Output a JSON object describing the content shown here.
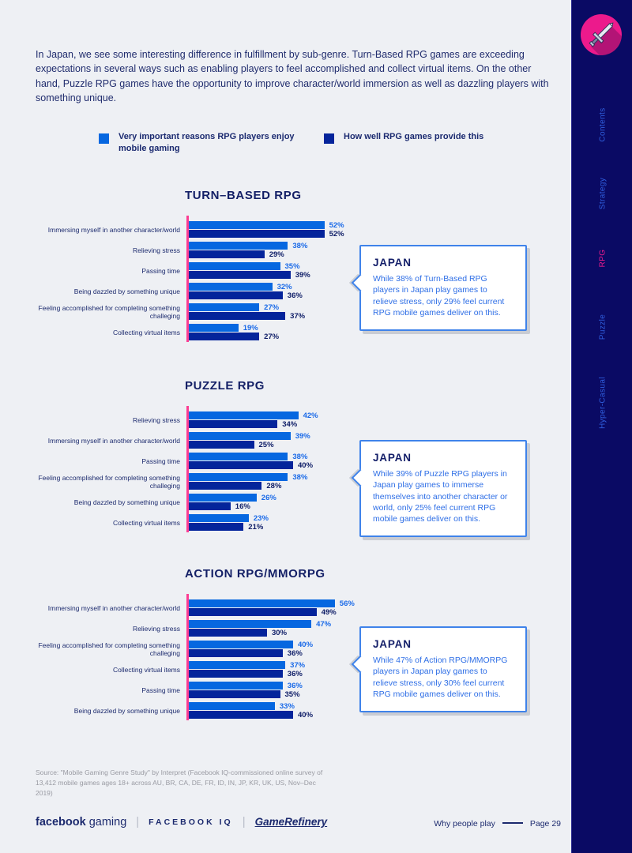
{
  "colors": {
    "bar_important": "#0667e0",
    "bar_provide": "#04249b",
    "axis_pink": "#fb3e93",
    "sidebar_bg": "#0a0a64",
    "sidebar_active": "#ea1b8c",
    "callout_border": "#3f83ea",
    "icon_circle": "#ec1a8c",
    "navy_text": "#131f66"
  },
  "intro": "In Japan, we see some interesting difference in fulfillment by sub-genre. Turn-Based RPG games are exceeding expectations in several ways such as enabling players to feel accomplished and collect virtual items. On the other hand, Puzzle RPG games have the opportunity to improve character/world immersion as well as dazzling players with something unique.",
  "legend": [
    {
      "label": "Very important reasons RPG players enjoy mobile gaming",
      "color": "#0667e0"
    },
    {
      "label": "How well RPG games provide this",
      "color": "#04249b"
    }
  ],
  "chart_data": [
    {
      "type": "bar",
      "orientation": "horizontal",
      "title": "TURN–BASED RPG",
      "value_suffix": "%",
      "xlim": [
        0,
        60
      ],
      "categories": [
        "Immersing myself in another character/world",
        "Relieving stress",
        "Passing time",
        "Being dazzled by something unique",
        "Feeling accomplished for completing something challeging",
        "Collecting virtual items"
      ],
      "series": [
        {
          "name": "Very important reasons RPG players enjoy mobile gaming",
          "values": [
            52,
            38,
            35,
            32,
            27,
            19
          ]
        },
        {
          "name": "How well RPG games provide this",
          "values": [
            52,
            29,
            39,
            36,
            37,
            27
          ]
        }
      ]
    },
    {
      "type": "bar",
      "orientation": "horizontal",
      "title": "PUZZLE RPG",
      "value_suffix": "%",
      "xlim": [
        0,
        60
      ],
      "categories": [
        "Relieving stress",
        "Immersing myself in another character/world",
        "Passing time",
        "Feeling accomplished for completing something challeging",
        "Being dazzled by something unique",
        "Collecting virtual items"
      ],
      "series": [
        {
          "name": "Very important reasons RPG players enjoy mobile gaming",
          "values": [
            42,
            39,
            38,
            38,
            26,
            23
          ]
        },
        {
          "name": "How well RPG games provide this",
          "values": [
            34,
            25,
            40,
            28,
            16,
            21
          ]
        }
      ]
    },
    {
      "type": "bar",
      "orientation": "horizontal",
      "title": "ACTION RPG/MMORPG",
      "value_suffix": "%",
      "xlim": [
        0,
        60
      ],
      "categories": [
        "Immersing myself in another character/world",
        "Relieving stress",
        "Feeling accomplished for completing something challeging",
        "Collecting virtual items",
        "Passing time",
        "Being dazzled by something unique"
      ],
      "series": [
        {
          "name": "Very important reasons RPG players enjoy mobile gaming",
          "values": [
            56,
            47,
            40,
            37,
            36,
            33
          ]
        },
        {
          "name": "How well RPG games provide this",
          "values": [
            49,
            30,
            36,
            36,
            35,
            40
          ]
        }
      ]
    }
  ],
  "callouts": [
    {
      "title": "JAPAN",
      "body": "While 38% of Turn-Based RPG players in Japan play games to relieve stress, only 29% feel current RPG mobile games deliver on this."
    },
    {
      "title": "JAPAN",
      "body": "While 39% of Puzzle RPG players in Japan play games to immerse themselves into another character or world, only 25% feel current RPG mobile games deliver on this."
    },
    {
      "title": "JAPAN",
      "body": "While 47% of Action RPG/MMORPG players in Japan play games to relieve stress, only 30% feel current RPG mobile games deliver on this."
    }
  ],
  "sidebar": {
    "icon": "sword-icon",
    "items": [
      {
        "label": "Contents",
        "active": false
      },
      {
        "label": "Strategy",
        "active": false
      },
      {
        "label": "RPG",
        "active": true
      },
      {
        "label": "Puzzle",
        "active": false
      },
      {
        "label": "Hyper-Casual",
        "active": false
      }
    ]
  },
  "footer": {
    "source": "Source: \"Mobile Gaming Genre Study\" by Interpret (Facebook IQ-commissioned online survey of 13,412 mobile games ages 18+ across AU, BR, CA, DE, FR, ID, IN, JP, KR, UK, US, Nov–Dec 2019)",
    "logo_facebook_bold": "facebook",
    "logo_facebook_light": "gaming",
    "logo_iq": "FACEBOOK IQ",
    "logo_gamerefinery": "GameRefinery",
    "section": "Why people play",
    "page": "Page 29"
  }
}
